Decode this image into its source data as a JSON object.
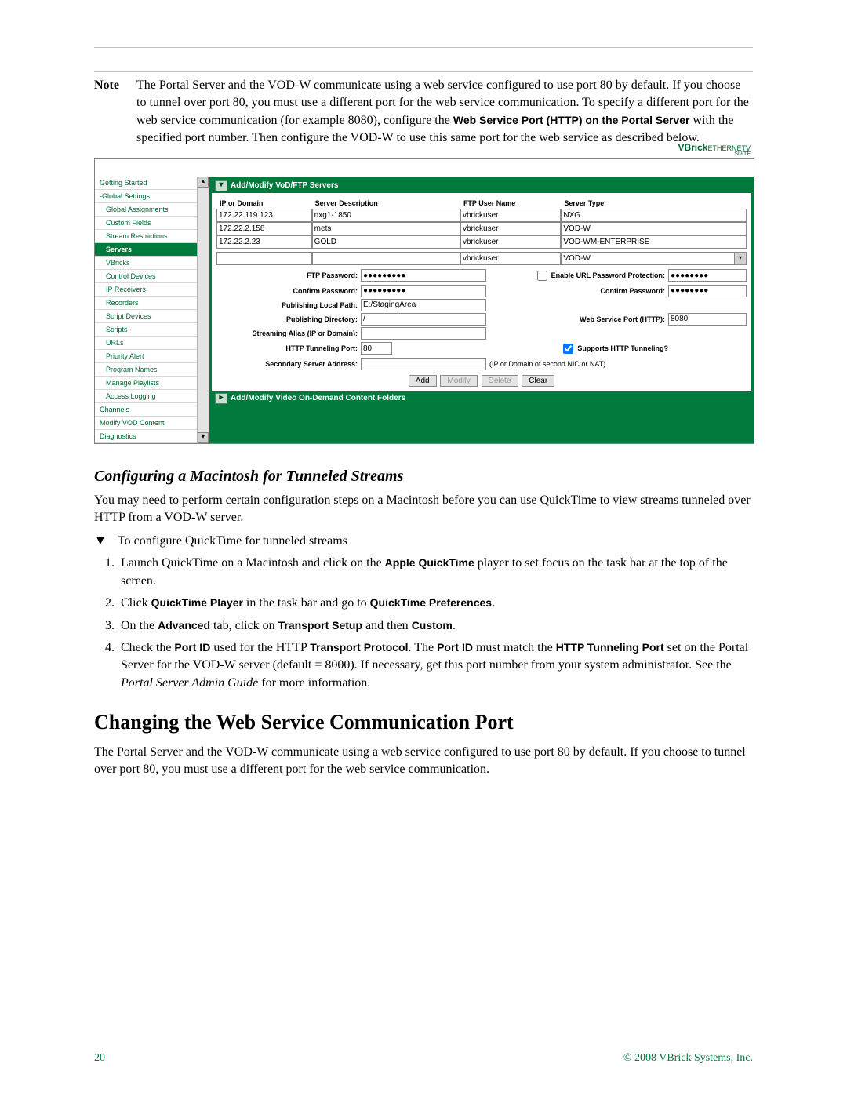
{
  "note": {
    "label": "Note",
    "text_pre": "The Portal Server and the VOD-W communicate using a web service configured to use port 80 by default. If you choose to tunnel over port 80, you must use a different port for the web service communication. To specify a different port for the web service communication (for example 8080), configure the ",
    "bold1": "Web Service Port (HTTP) on the Portal Server",
    "text_mid": " with the specified port number. Then configure the VOD-W to use this same port for the web service as described below."
  },
  "screenshot": {
    "brand": {
      "a": "VBrick",
      "b": "ETHERNETV",
      "c": "SUITE"
    },
    "section1_title": "Add/Modify VoD/FTP Servers",
    "section2_title": "Add/Modify Video On-Demand Content Folders",
    "sidebar": [
      {
        "label": "Getting Started",
        "indent": false,
        "sel": false
      },
      {
        "label": "-Global Settings",
        "indent": false,
        "sel": false
      },
      {
        "label": "Global Assignments",
        "indent": true,
        "sel": false
      },
      {
        "label": "Custom Fields",
        "indent": true,
        "sel": false
      },
      {
        "label": "Stream Restrictions",
        "indent": true,
        "sel": false
      },
      {
        "label": "Servers",
        "indent": true,
        "sel": true
      },
      {
        "label": "VBricks",
        "indent": true,
        "sel": false
      },
      {
        "label": "Control Devices",
        "indent": true,
        "sel": false
      },
      {
        "label": "IP Receivers",
        "indent": true,
        "sel": false
      },
      {
        "label": "Recorders",
        "indent": true,
        "sel": false
      },
      {
        "label": "Script Devices",
        "indent": true,
        "sel": false
      },
      {
        "label": "Scripts",
        "indent": true,
        "sel": false
      },
      {
        "label": "URLs",
        "indent": true,
        "sel": false
      },
      {
        "label": "Priority Alert",
        "indent": true,
        "sel": false
      },
      {
        "label": "Program Names",
        "indent": true,
        "sel": false
      },
      {
        "label": "Manage Playlists",
        "indent": true,
        "sel": false
      },
      {
        "label": "Access Logging",
        "indent": true,
        "sel": false
      },
      {
        "label": "Channels",
        "indent": false,
        "sel": false
      },
      {
        "label": "Modify VOD Content",
        "indent": false,
        "sel": false
      },
      {
        "label": "Diagnostics",
        "indent": false,
        "sel": false
      }
    ],
    "table": {
      "headers": [
        "IP or Domain",
        "Server Description",
        "FTP User Name",
        "Server Type"
      ],
      "rows": [
        [
          "172.22.119.123",
          "nxg1-1850",
          "vbrickuser",
          "NXG"
        ],
        [
          "172.22.2.158",
          "mets",
          "vbrickuser",
          "VOD-W"
        ],
        [
          "172.22.2.23",
          "GOLD",
          "vbrickuser",
          "VOD-WM-ENTERPRISE"
        ]
      ],
      "new_row": [
        "",
        "",
        "vbrickuser",
        "VOD-W"
      ]
    },
    "form": {
      "ftp_password_label": "FTP Password:",
      "ftp_password_val": "●●●●●●●●●",
      "url_prot_label": "Enable URL Password Protection:",
      "url_prot_val": "●●●●●●●●",
      "confirm_pw_label": "Confirm Password:",
      "confirm_pw_val": "●●●●●●●●●",
      "confirm_pw2_label": "Confirm Password:",
      "confirm_pw2_val": "●●●●●●●●",
      "pub_local_label": "Publishing Local Path:",
      "pub_local_val": "E:/StagingArea",
      "pub_dir_label": "Publishing Directory:",
      "pub_dir_val": "/",
      "ws_port_label": "Web Service Port (HTTP):",
      "ws_port_val": "8080",
      "alias_label": "Streaming Alias (IP or Domain):",
      "alias_val": "",
      "tunnel_port_label": "HTTP Tunneling Port:",
      "tunnel_port_val": "80",
      "supports_label": "Supports HTTP Tunneling?",
      "secondary_label": "Secondary Server Address:",
      "secondary_val": "",
      "secondary_note": "(IP or Domain of second NIC or NAT)"
    },
    "buttons": {
      "add": "Add",
      "modify": "Modify",
      "delete": "Delete",
      "clear": "Clear"
    }
  },
  "mac_section": {
    "heading": "Configuring a Macintosh for Tunneled Streams",
    "intro": "You may need to perform certain configuration steps on a Macintosh before you can use QuickTime to view streams tunneled over HTTP from a VOD-W server.",
    "tri_label": "To configure QuickTime for tunneled streams",
    "step1_a": "Launch QuickTime on a Macintosh and click on the ",
    "step1_b": "Apple QuickTime",
    "step1_c": " player to set focus on the task bar at the top of the screen.",
    "step2_a": "Click ",
    "step2_b": "QuickTime Player",
    "step2_c": " in the task bar and go to ",
    "step2_d": "QuickTime Preferences",
    "step2_e": ".",
    "step3_a": "On the ",
    "step3_b": "Advanced",
    "step3_c": " tab, click on ",
    "step3_d": "Transport Setup",
    "step3_e": " and then ",
    "step3_f": "Custom",
    "step3_g": ".",
    "step4_a": "Check the ",
    "step4_b": "Port ID",
    "step4_c": " used for the HTTP ",
    "step4_d": "Transport Protocol",
    "step4_e": ". The ",
    "step4_f": "Port ID",
    "step4_g": " must match the ",
    "step4_h": "HTTP Tunneling Port",
    "step4_i": " set on the Portal Server for the VOD-W server (default = 8000). If necessary, get this port number from your system administrator. See the ",
    "step4_j": "Portal Server Admin Guide",
    "step4_k": " for more information."
  },
  "ws_section": {
    "heading": "Changing the Web Service Communication Port",
    "body": "The Portal Server and the VOD-W communicate using a web service configured to use port 80 by default. If you choose to tunnel over port 80, you must use a different port for the web service communication."
  },
  "footer": {
    "page": "20",
    "copyright": "© 2008 VBrick Systems, Inc."
  },
  "colors": {
    "accent_green": "#007a3d",
    "link_green": "#006633",
    "divider": "#c0c0c0"
  }
}
